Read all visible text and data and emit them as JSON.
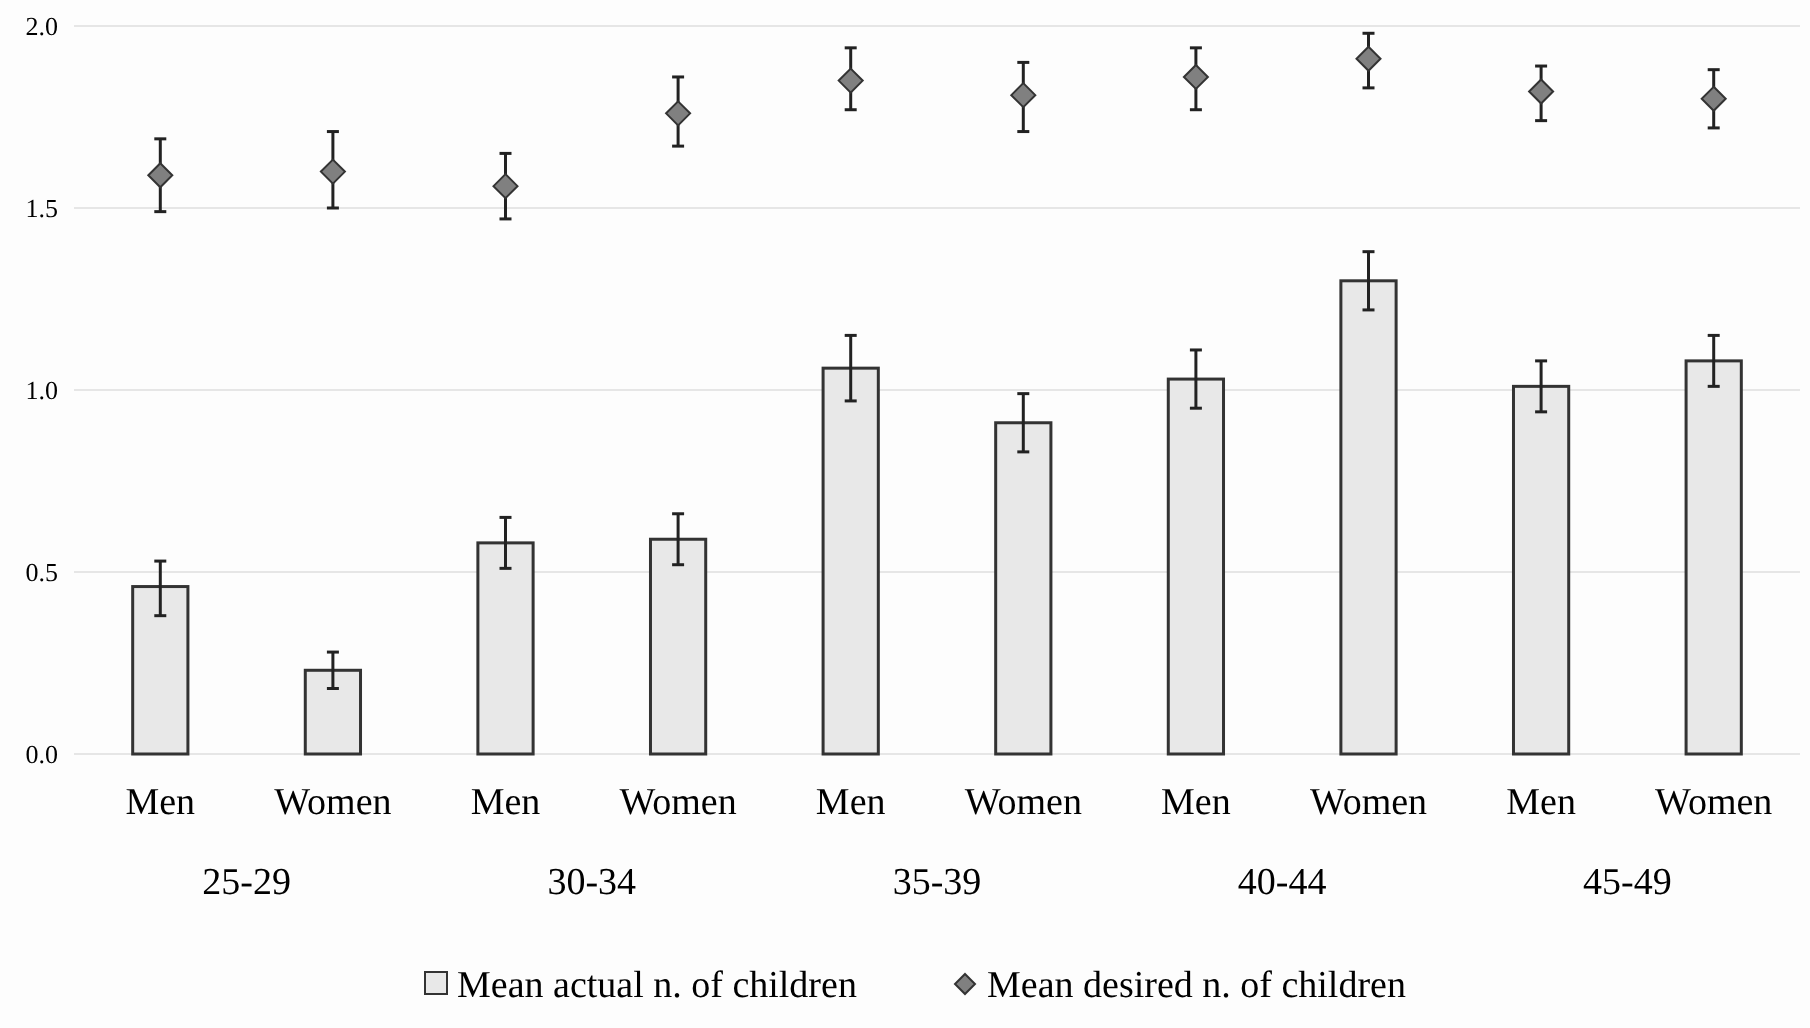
{
  "chart_data": {
    "type": "bar",
    "categories": [
      "Men",
      "Women",
      "Men",
      "Women",
      "Men",
      "Women",
      "Men",
      "Women",
      "Men",
      "Women"
    ],
    "annotations": [
      "25-29",
      "30-34",
      "35-39",
      "40-44",
      "45-49"
    ],
    "series": [
      {
        "name": "Mean actual n. of children",
        "color": "#e8e8e8",
        "values": [
          0.46,
          0.23,
          0.58,
          0.59,
          1.06,
          0.91,
          1.03,
          1.3,
          1.01,
          1.08
        ],
        "errors": [
          [
            0.38,
            0.53
          ],
          [
            0.18,
            0.28
          ],
          [
            0.51,
            0.65
          ],
          [
            0.52,
            0.66
          ],
          [
            0.97,
            1.15
          ],
          [
            0.83,
            0.99
          ],
          [
            0.95,
            1.11
          ],
          [
            1.22,
            1.38
          ],
          [
            0.94,
            1.08
          ],
          [
            1.01,
            1.15
          ]
        ]
      },
      {
        "name": "Mean desired n. of children",
        "type": "scatter",
        "marker": "diamond",
        "color": "#808080",
        "values": [
          1.59,
          1.6,
          1.56,
          1.76,
          1.85,
          1.81,
          1.86,
          1.91,
          1.82,
          1.8
        ],
        "errors": [
          [
            1.49,
            1.69
          ],
          [
            1.5,
            1.71
          ],
          [
            1.47,
            1.65
          ],
          [
            1.67,
            1.86
          ],
          [
            1.77,
            1.94
          ],
          [
            1.71,
            1.9
          ],
          [
            1.77,
            1.94
          ],
          [
            1.83,
            1.98
          ],
          [
            1.74,
            1.89
          ],
          [
            1.72,
            1.88
          ]
        ]
      }
    ],
    "ylim": [
      0,
      2
    ],
    "yticks": [
      {
        "value": 0,
        "label": "0.0"
      },
      {
        "value": 0.5,
        "label": "0.5"
      },
      {
        "value": 1,
        "label": "1.0"
      },
      {
        "value": 1.5,
        "label": "1.5"
      },
      {
        "value": 2,
        "label": "2.0"
      }
    ],
    "grid": "y",
    "legend": "bottom"
  }
}
